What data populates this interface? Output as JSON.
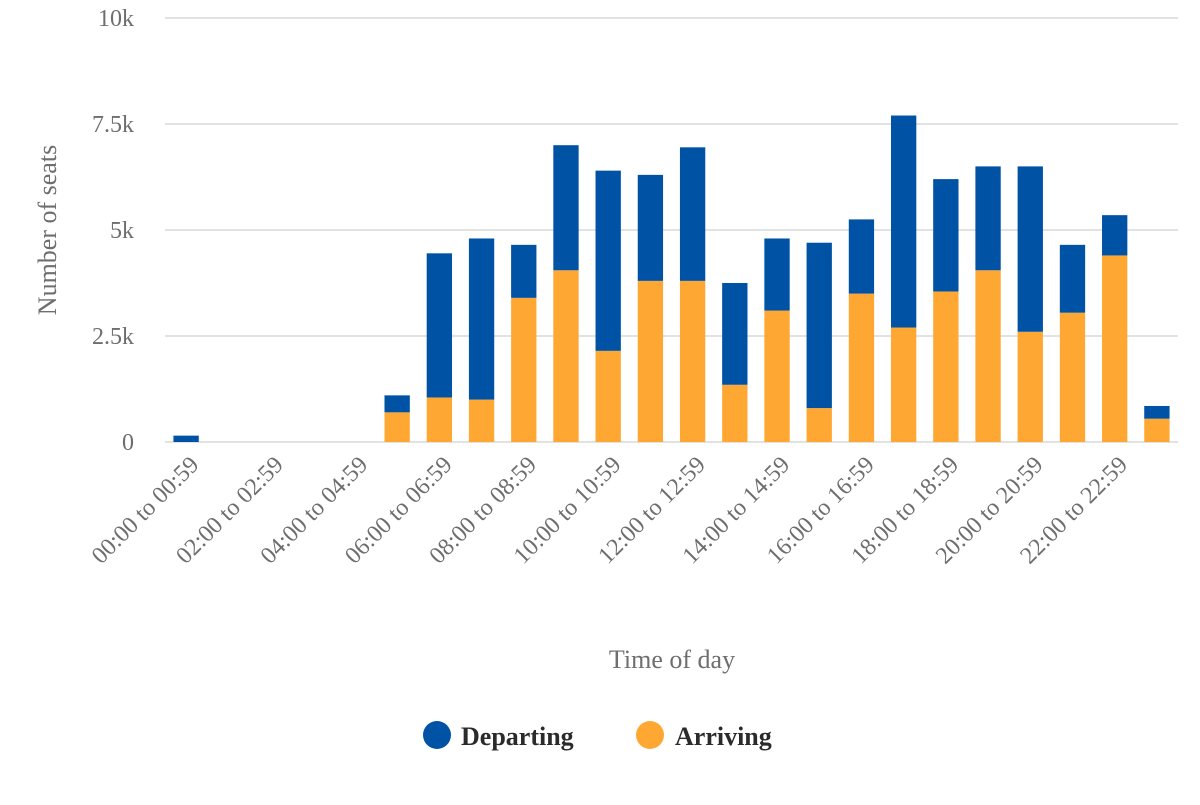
{
  "chart_data": {
    "type": "bar",
    "stacked": true,
    "categories": [
      "00:00 to 00:59",
      "01:00 to 01:59",
      "02:00 to 02:59",
      "03:00 to 03:59",
      "04:00 to 04:59",
      "05:00 to 05:59",
      "06:00 to 06:59",
      "07:00 to 07:59",
      "08:00 to 08:59",
      "09:00 to 09:59",
      "10:00 to 10:59",
      "11:00 to 11:59",
      "12:00 to 12:59",
      "13:00 to 13:59",
      "14:00 to 14:59",
      "15:00 to 15:59",
      "16:00 to 16:59",
      "17:00 to 17:59",
      "18:00 to 18:59",
      "19:00 to 19:59",
      "20:00 to 20:59",
      "21:00 to 21:59",
      "22:00 to 22:59",
      "23:00 to 23:59"
    ],
    "visible_tick_labels": [
      "00:00 to 00:59",
      "02:00 to 02:59",
      "04:00 to 04:59",
      "06:00 to 06:59",
      "08:00 to 08:59",
      "10:00 to 10:59",
      "12:00 to 12:59",
      "14:00 to 14:59",
      "16:00 to 16:59",
      "18:00 to 18:59",
      "20:00 to 20:59",
      "22:00 to 22:59"
    ],
    "series": [
      {
        "name": "Arriving",
        "color": "#ffa733",
        "values": [
          0,
          0,
          0,
          0,
          0,
          700,
          1050,
          1000,
          3400,
          4050,
          2150,
          3800,
          3800,
          1350,
          3100,
          800,
          3500,
          2700,
          3550,
          4050,
          2600,
          3050,
          4400,
          550
        ]
      },
      {
        "name": "Departing",
        "color": "#0052a5",
        "values": [
          150,
          0,
          0,
          0,
          0,
          400,
          3400,
          3800,
          1250,
          2950,
          4250,
          2500,
          3150,
          2400,
          1700,
          3900,
          1750,
          5000,
          2650,
          2450,
          3900,
          1600,
          950,
          300
        ]
      }
    ],
    "ylim": [
      0,
      10000
    ],
    "yticks": [
      0,
      2500,
      5000,
      7500,
      10000
    ],
    "ytick_labels": [
      "0",
      "2.5k",
      "5k",
      "7.5k",
      "10k"
    ],
    "xlabel": "Time of day",
    "ylabel": "Number of seats",
    "grid": true,
    "legend": {
      "position": "bottom-center",
      "entries": [
        {
          "label": "Departing",
          "color": "#0052a5"
        },
        {
          "label": "Arriving",
          "color": "#ffa733"
        }
      ]
    }
  }
}
